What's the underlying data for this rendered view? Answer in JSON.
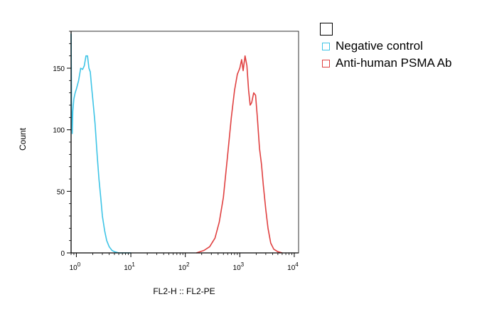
{
  "chart_data": {
    "type": "line",
    "xlabel": "FL2-H :: FL2-PE",
    "ylabel": "Count",
    "x_scale": "log",
    "xlim": [
      0.8,
      12000
    ],
    "ylim": [
      0,
      180
    ],
    "x_ticks": [
      {
        "value": 1,
        "base": "10",
        "exp": "0"
      },
      {
        "value": 10,
        "base": "10",
        "exp": "1"
      },
      {
        "value": 100,
        "base": "10",
        "exp": "2"
      },
      {
        "value": 1000,
        "base": "10",
        "exp": "3"
      },
      {
        "value": 10000,
        "base": "10",
        "exp": "4"
      }
    ],
    "y_ticks": [
      0,
      50,
      100,
      150
    ],
    "grid": false,
    "legend_position": "top-right, outside plot",
    "series": [
      {
        "name": "Negative control",
        "color": "#3ec4e6",
        "points": [
          [
            0.8,
            178
          ],
          [
            0.82,
            110
          ],
          [
            0.84,
            97
          ],
          [
            0.86,
            115
          ],
          [
            0.9,
            125
          ],
          [
            0.95,
            130
          ],
          [
            1.0,
            133
          ],
          [
            1.1,
            140
          ],
          [
            1.2,
            150
          ],
          [
            1.3,
            149
          ],
          [
            1.4,
            152
          ],
          [
            1.5,
            160
          ],
          [
            1.6,
            160
          ],
          [
            1.7,
            150
          ],
          [
            1.8,
            147
          ],
          [
            1.9,
            135
          ],
          [
            2.0,
            125
          ],
          [
            2.2,
            105
          ],
          [
            2.4,
            80
          ],
          [
            2.6,
            60
          ],
          [
            2.8,
            45
          ],
          [
            3.0,
            30
          ],
          [
            3.3,
            18
          ],
          [
            3.6,
            10
          ],
          [
            4.0,
            5
          ],
          [
            4.5,
            2
          ],
          [
            5.0,
            1
          ],
          [
            6.0,
            0
          ],
          [
            10,
            0
          ]
        ]
      },
      {
        "name": "Anti-human PSMA Ab",
        "color": "#e04040",
        "points": [
          [
            160,
            0
          ],
          [
            220,
            2
          ],
          [
            280,
            5
          ],
          [
            350,
            12
          ],
          [
            420,
            25
          ],
          [
            500,
            45
          ],
          [
            600,
            80
          ],
          [
            700,
            110
          ],
          [
            800,
            132
          ],
          [
            900,
            145
          ],
          [
            1000,
            150
          ],
          [
            1080,
            157
          ],
          [
            1150,
            148
          ],
          [
            1250,
            160
          ],
          [
            1350,
            152
          ],
          [
            1450,
            132
          ],
          [
            1550,
            120
          ],
          [
            1650,
            122
          ],
          [
            1800,
            130
          ],
          [
            1950,
            128
          ],
          [
            2100,
            110
          ],
          [
            2300,
            85
          ],
          [
            2500,
            72
          ],
          [
            2700,
            55
          ],
          [
            3000,
            35
          ],
          [
            3300,
            20
          ],
          [
            3700,
            8
          ],
          [
            4200,
            3
          ],
          [
            5000,
            1
          ],
          [
            6000,
            0
          ]
        ]
      }
    ]
  }
}
